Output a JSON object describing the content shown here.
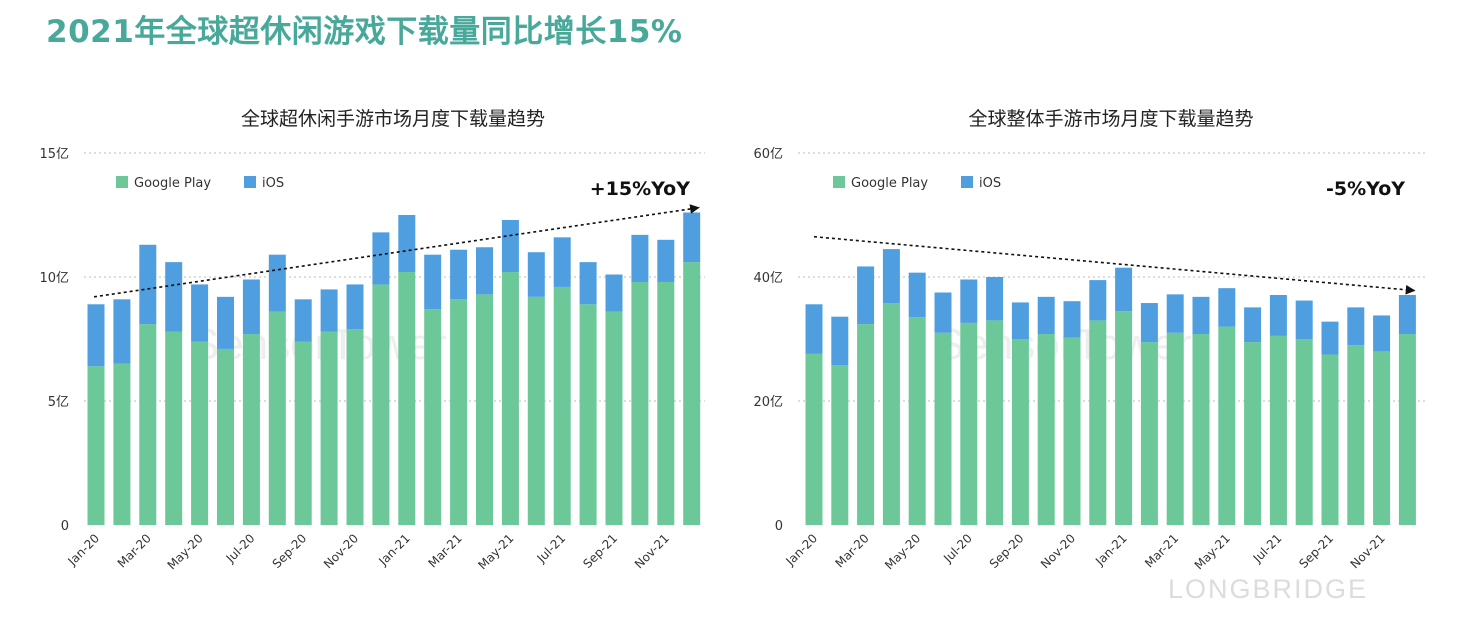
{
  "title": "2021年全球超休闲游戏下载量同比增长15%",
  "watermarks": [
    "SensorTower",
    "LONGBRIDGE"
  ],
  "colors": {
    "google_play": "#6cc799",
    "ios": "#4f9fe0",
    "title": "#48a89a"
  },
  "chart_data": [
    {
      "type": "bar",
      "stacked": true,
      "title": "全球超休闲手游市场月度下载量趋势",
      "annotation": "+15%YoY",
      "trend": "up",
      "y_ticks": [
        "0",
        "5亿",
        "10亿",
        "15亿"
      ],
      "ylim": [
        0,
        15
      ],
      "grid": true,
      "legend": "top-left",
      "categories": [
        "Jan-20",
        "Feb-20",
        "Mar-20",
        "Apr-20",
        "May-20",
        "Jun-20",
        "Jul-20",
        "Aug-20",
        "Sep-20",
        "Oct-20",
        "Nov-20",
        "Dec-20",
        "Jan-21",
        "Feb-21",
        "Mar-21",
        "Apr-21",
        "May-21",
        "Jun-21",
        "Jul-21",
        "Aug-21",
        "Sep-21",
        "Oct-21",
        "Nov-21",
        "Dec-21"
      ],
      "x_tick_labels": [
        "Jan-20",
        "Mar-20",
        "May-20",
        "Jul-20",
        "Sep-20",
        "Nov-20",
        "Jan-21",
        "Mar-21",
        "May-21",
        "Jul-21",
        "Sep-21",
        "Nov-21"
      ],
      "series": [
        {
          "name": "Google Play",
          "values": [
            6.4,
            6.5,
            8.1,
            7.8,
            7.4,
            7.1,
            7.7,
            8.6,
            7.4,
            7.8,
            7.9,
            9.7,
            10.2,
            8.7,
            9.1,
            9.3,
            10.2,
            9.2,
            9.6,
            8.9,
            8.6,
            9.8,
            9.8,
            10.6
          ]
        },
        {
          "name": "iOS",
          "values": [
            2.5,
            2.6,
            3.2,
            2.8,
            2.3,
            2.1,
            2.2,
            2.3,
            1.7,
            1.7,
            1.8,
            2.1,
            2.3,
            2.2,
            2.0,
            1.9,
            2.1,
            1.8,
            2.0,
            1.7,
            1.5,
            1.9,
            1.7,
            2.0
          ]
        }
      ]
    },
    {
      "type": "bar",
      "stacked": true,
      "title": "全球整体手游市场月度下载量趋势",
      "annotation": "-5%YoY",
      "trend": "down",
      "y_ticks": [
        "0",
        "20亿",
        "40亿",
        "60亿"
      ],
      "ylim": [
        0,
        60
      ],
      "grid": true,
      "legend": "top-left",
      "categories": [
        "Jan-20",
        "Feb-20",
        "Mar-20",
        "Apr-20",
        "May-20",
        "Jun-20",
        "Jul-20",
        "Aug-20",
        "Sep-20",
        "Oct-20",
        "Nov-20",
        "Dec-20",
        "Jan-21",
        "Feb-21",
        "Mar-21",
        "Apr-21",
        "May-21",
        "Jun-21",
        "Jul-21",
        "Aug-21",
        "Sep-21",
        "Oct-21",
        "Nov-21",
        "Dec-21"
      ],
      "x_tick_labels": [
        "Jan-20",
        "Mar-20",
        "May-20",
        "Jul-20",
        "Sep-20",
        "Nov-20",
        "Jan-21",
        "Mar-21",
        "May-21",
        "Jul-21",
        "Sep-21",
        "Nov-21"
      ],
      "series": [
        {
          "name": "Google Play",
          "values": [
            27.6,
            25.8,
            32.4,
            35.8,
            33.5,
            31.0,
            32.6,
            33.0,
            30.0,
            30.8,
            30.2,
            33.0,
            34.5,
            29.5,
            31.0,
            30.8,
            32.0,
            29.5,
            30.5,
            30.0,
            27.5,
            29.0,
            28.0,
            30.8
          ]
        },
        {
          "name": "iOS",
          "values": [
            8.0,
            7.8,
            9.3,
            8.7,
            7.2,
            6.5,
            7.0,
            7.0,
            5.9,
            6.0,
            5.9,
            6.5,
            7.0,
            6.3,
            6.2,
            6.0,
            6.2,
            5.6,
            6.6,
            6.2,
            5.3,
            6.1,
            5.8,
            6.3
          ]
        }
      ]
    }
  ]
}
